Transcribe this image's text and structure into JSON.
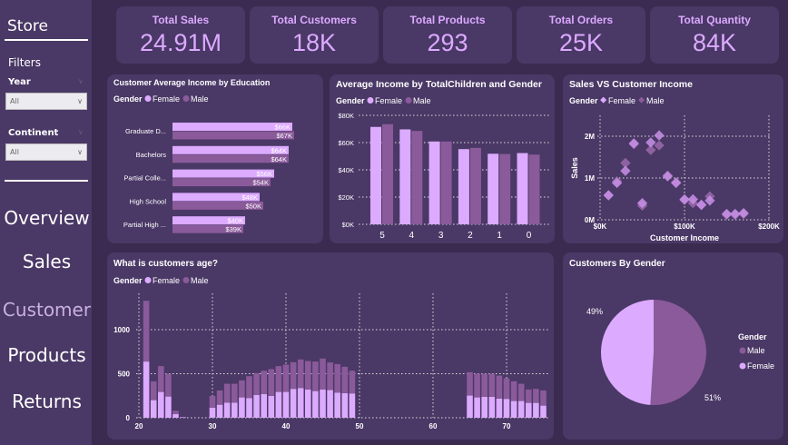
{
  "sidebar": {
    "title": "Store",
    "filters_label": "Filters",
    "filters": [
      {
        "label": "Year",
        "value": "All"
      },
      {
        "label": "Continent",
        "value": "All"
      }
    ],
    "nav": [
      {
        "label": "Overview",
        "active": false
      },
      {
        "label": "Sales",
        "active": false
      },
      {
        "label": "Customer",
        "active": true
      },
      {
        "label": "Products",
        "active": false
      },
      {
        "label": "Returns",
        "active": false
      }
    ]
  },
  "kpis": [
    {
      "label": "Total Sales",
      "value": "24.91M"
    },
    {
      "label": "Total Customers",
      "value": "18K"
    },
    {
      "label": "Total Products",
      "value": "293"
    },
    {
      "label": "Total Orders",
      "value": "25K"
    },
    {
      "label": "Total Quantity",
      "value": "84K"
    }
  ],
  "colors": {
    "female": "#dcaaff",
    "male": "#8a5a9a",
    "panel": "#4a3866",
    "background": "#3b2b50"
  },
  "chart_data": [
    {
      "type": "bar",
      "orientation": "horizontal",
      "title": "Customer Average Income by Education",
      "legend_title": "Gender",
      "legend_placement": "top-left",
      "categories": [
        "Graduate D...",
        "Bachelors",
        "Partial Colle...",
        "High School",
        "Partial High ..."
      ],
      "series": [
        {
          "name": "Female",
          "values": [
            66,
            64,
            56,
            48,
            40
          ],
          "labels": [
            "$66K",
            "$64K",
            "$56K",
            "$48K",
            "$40K"
          ]
        },
        {
          "name": "Male",
          "values": [
            67,
            64,
            54,
            50,
            39
          ],
          "labels": [
            "$67K",
            "$64K",
            "$54K",
            "$50K",
            "$39K"
          ]
        }
      ],
      "unit": "$K"
    },
    {
      "type": "bar",
      "title": "Average Income by TotalChildren and Gender",
      "legend_title": "Gender",
      "legend_placement": "top-left",
      "categories": [
        "5",
        "4",
        "3",
        "2",
        "1",
        "0"
      ],
      "series": [
        {
          "name": "Female",
          "values": [
            71.5,
            69.7,
            60.8,
            55.2,
            51.8,
            52.3
          ]
        },
        {
          "name": "Male",
          "values": [
            73.5,
            68.6,
            60.8,
            56.1,
            51.6,
            51.2
          ]
        }
      ],
      "ylim": [
        0,
        80
      ],
      "yticks": [
        "$0K",
        "$20K",
        "$40K",
        "$60K",
        "$80K"
      ],
      "grid": true
    },
    {
      "type": "scatter",
      "title": "Sales VS Customer Income",
      "legend_title": "Gender",
      "legend_placement": "top-left",
      "xlabel": "Customer Income",
      "ylabel": "Sales",
      "xlim": [
        0,
        200
      ],
      "ylim": [
        0,
        2.5
      ],
      "xticks": [
        "$0K",
        "$100K",
        "$200K"
      ],
      "yticks": [
        "0M",
        "1M",
        "2M"
      ],
      "grid": true,
      "series": [
        {
          "name": "Female",
          "x": [
            10,
            20,
            30,
            40,
            50,
            60,
            70,
            80,
            90,
            100,
            110,
            120,
            130,
            150,
            160,
            170
          ],
          "y": [
            0.59,
            0.88,
            1.17,
            1.83,
            0.4,
            1.85,
            2.02,
            1.04,
            0.88,
            0.49,
            0.49,
            0.36,
            0.46,
            0.14,
            0.14,
            0.16
          ]
        },
        {
          "name": "Male",
          "x": [
            10,
            20,
            30,
            40,
            50,
            60,
            70,
            80,
            90,
            100,
            110,
            120,
            130,
            150,
            160,
            170
          ],
          "y": [
            0.58,
            0.92,
            1.36,
            1.81,
            0.34,
            1.67,
            1.78,
            1.06,
            0.9,
            0.47,
            0.4,
            0.35,
            0.56,
            0.12,
            0.12,
            0.14
          ]
        }
      ]
    },
    {
      "type": "bar",
      "stacked": true,
      "title": "What is customers age?",
      "legend_title": "Gender",
      "legend_placement": "top-left",
      "xlim": [
        20,
        76
      ],
      "xticks": [
        20,
        30,
        40,
        50,
        60,
        70
      ],
      "ylim": [
        0,
        1350
      ],
      "yticks": [
        0,
        500,
        1000
      ],
      "grid": true,
      "x": [
        21,
        22,
        23,
        24,
        25,
        26,
        30,
        31,
        32,
        33,
        34,
        35,
        36,
        37,
        38,
        39,
        40,
        41,
        42,
        43,
        44,
        45,
        46,
        47,
        48,
        49,
        65,
        66,
        67,
        68,
        69,
        70,
        71,
        72,
        73,
        74,
        75
      ],
      "series": [
        {
          "name": "Female",
          "values": [
            638,
            200,
            293,
            241,
            41,
            5,
            114,
            148,
            172,
            172,
            231,
            224,
            259,
            269,
            248,
            293,
            293,
            328,
            338,
            321,
            303,
            321,
            314,
            286,
            279,
            276,
            252,
            231,
            238,
            238,
            217,
            214,
            190,
            190,
            169,
            169,
            138
          ]
        },
        {
          "name": "Male",
          "values": [
            690,
            214,
            293,
            259,
            38,
            5,
            134,
            162,
            214,
            214,
            193,
            248,
            248,
            265,
            304,
            293,
            310,
            303,
            324,
            324,
            335,
            351,
            314,
            324,
            300,
            258,
            265,
            269,
            262,
            262,
            262,
            234,
            224,
            196,
            152,
            159,
            172
          ]
        }
      ]
    },
    {
      "type": "pie",
      "title": "Customers By Gender",
      "legend_title": "Gender",
      "legend_placement": "right",
      "slices": [
        {
          "name": "Male",
          "value": 51,
          "label": "51%"
        },
        {
          "name": "Female",
          "value": 49,
          "label": "49%"
        }
      ]
    }
  ]
}
